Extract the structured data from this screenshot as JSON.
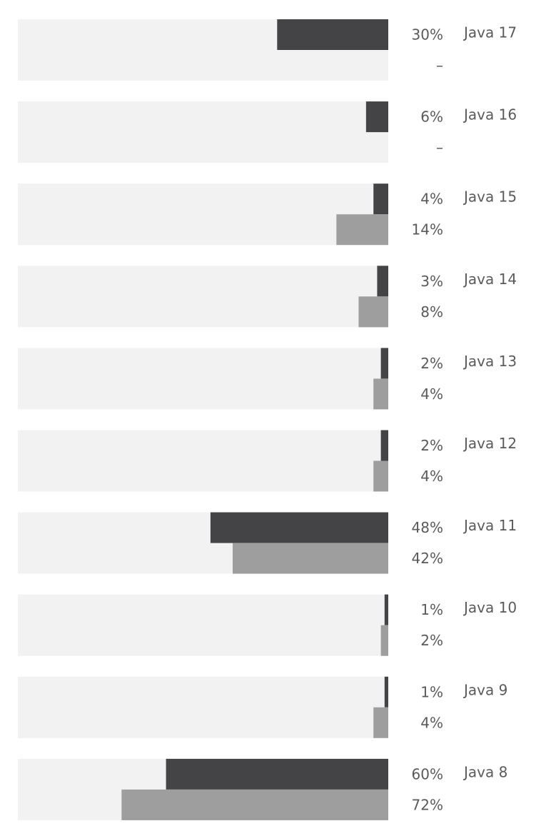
{
  "chart_data": {
    "type": "bar",
    "orientation": "horizontal",
    "grouped": true,
    "bar_direction": "right-to-left",
    "xlim": [
      0,
      100
    ],
    "grid": false,
    "legend": "none",
    "categories": [
      "Java 17",
      "Java 16",
      "Java 15",
      "Java 14",
      "Java 13",
      "Java 12",
      "Java 11",
      "Java 10",
      "Java 9",
      "Java 8"
    ],
    "series": [
      {
        "color": "#444447",
        "values": [
          30,
          6,
          4,
          3,
          2,
          2,
          48,
          1,
          1,
          60
        ],
        "labels": [
          "30%",
          "6%",
          "4%",
          "3%",
          "2%",
          "2%",
          "48%",
          "1%",
          "1%",
          "60%"
        ]
      },
      {
        "color": "#9e9e9e",
        "values": [
          null,
          null,
          14,
          8,
          4,
          4,
          42,
          2,
          4,
          72
        ],
        "labels": [
          "–",
          "–",
          "14%",
          "8%",
          "4%",
          "4%",
          "42%",
          "2%",
          "4%",
          "72%"
        ]
      }
    ],
    "track_color": "#f2f2f2"
  }
}
